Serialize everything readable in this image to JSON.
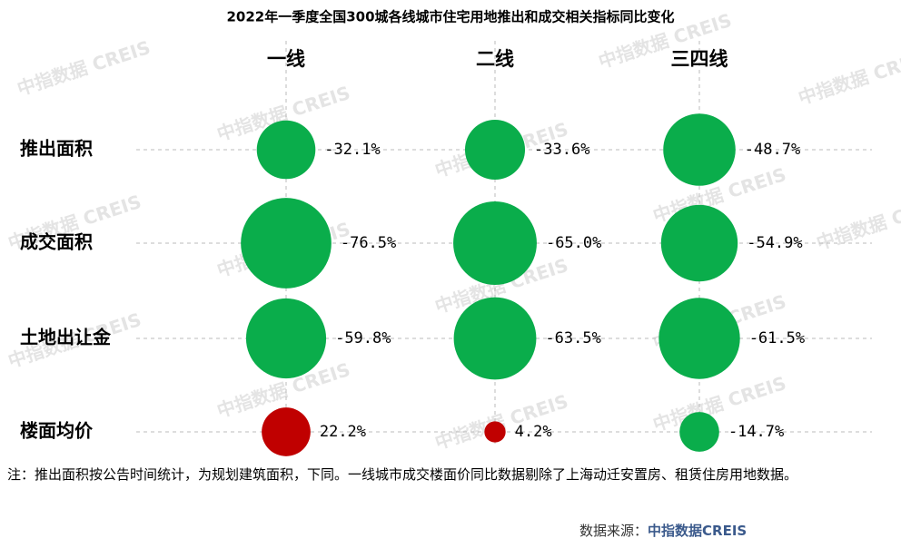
{
  "chart_data": {
    "type": "bubble",
    "title": "2022年一季度全国300城各线城市住宅用地推出和成交相关指标同比变化",
    "categories": [
      "一线",
      "二线",
      "三四线"
    ],
    "series": [
      {
        "name": "推出面积",
        "values": [
          -32.1,
          -33.6,
          -48.7
        ],
        "value_labels": [
          "-32.1%",
          "-33.6%",
          "-48.7%"
        ]
      },
      {
        "name": "成交面积",
        "values": [
          -76.5,
          -65.0,
          -54.9
        ],
        "value_labels": [
          "-76.5%",
          "-65.0%",
          "-54.9%"
        ]
      },
      {
        "name": "土地出让金",
        "values": [
          -59.8,
          -63.5,
          -61.5
        ],
        "value_labels": [
          "-59.8%",
          "-63.5%",
          "-61.5%"
        ]
      },
      {
        "name": "楼面均价",
        "values": [
          22.2,
          4.2,
          -14.7
        ],
        "value_labels": [
          "22.2%",
          "4.2%",
          "-14.7%"
        ]
      }
    ],
    "negative_color": "#0aad4b",
    "positive_color": "#c00000",
    "grid": true,
    "watermark": "中指数据 CREIS"
  },
  "note": "注：推出面积按公告时间统计，为规划建筑面积，下同。一线城市成交楼面价同比数据剔除了上海动迁安置房、租赁住房用地数据。",
  "source_label": "数据来源：",
  "source": "中指数据CREIS"
}
